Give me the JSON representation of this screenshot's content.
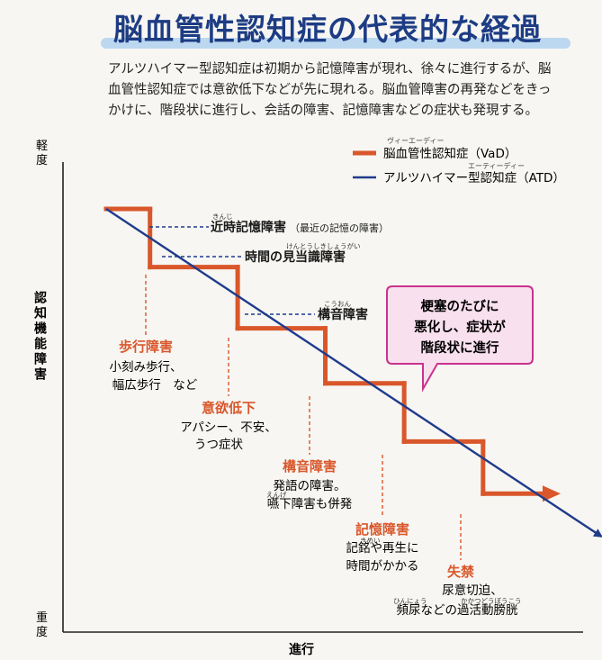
{
  "title": "脳血管性認知症の代表的な経過",
  "intro_lines": [
    "アルツハイマー型認知症は初期から記憶障害が現れ、徐々に進行するが、脳",
    "血管性認知症では意欲低下などが先に現れる。脳血管障害の再発などをきっ",
    "かけに、階段状に進行し、会話の障害、記憶障害などの症状も発現する。"
  ],
  "colors": {
    "vad": "#d9572b",
    "atd": "#1f3b8c",
    "title": "#1d3c84",
    "band": "#bcd8f0",
    "callout_border": "#c9338d",
    "callout_fill": "#f9e0ee"
  },
  "chart_data": {
    "type": "line",
    "ylabel": "認知機能障害",
    "y_top_label": "軽度",
    "y_bottom_label": "重度",
    "xlabel": "進行",
    "xlim": [
      0,
      100
    ],
    "ylim": [
      0,
      100
    ],
    "series": [
      {
        "name": "脳血管性認知症（VaD）",
        "ruby": "ヴィーエーディー",
        "points": [
          [
            0,
            100
          ],
          [
            10,
            100
          ],
          [
            10,
            81
          ],
          [
            30,
            81
          ],
          [
            30,
            61
          ],
          [
            50,
            61
          ],
          [
            50,
            43
          ],
          [
            68,
            43
          ],
          [
            68,
            24
          ],
          [
            86,
            24
          ],
          [
            86,
            7
          ],
          [
            100,
            7
          ]
        ]
      },
      {
        "name": "アルツハイマー型認知症（ATD）",
        "ruby": "エーティーディー",
        "points": [
          [
            0,
            100
          ],
          [
            113,
            -7
          ]
        ]
      }
    ],
    "atd_annotations": [
      {
        "text": "近時記憶障害",
        "ruby": "きんじ",
        "note": "（最近の記憶の障害）"
      },
      {
        "text": "時間の見当識障害",
        "ruby": "けんとうしきしょうがい"
      },
      {
        "text": "構音障害",
        "ruby": "こうおん"
      }
    ],
    "vad_annotations": [
      {
        "title": "歩行障害",
        "lines": [
          "小刻み歩行、",
          "幅広歩行　など"
        ]
      },
      {
        "title": "意欲低下",
        "lines": [
          "アパシー、不安、",
          "うつ症状"
        ]
      },
      {
        "title": "構音障害",
        "lines": [
          "発語の障害。",
          "嚥下障害も併発"
        ],
        "ruby": "えんげ"
      },
      {
        "title": "記憶障害",
        "lines": [
          "記銘や再生に",
          "時間がかかる"
        ],
        "ruby": "きめい"
      },
      {
        "title": "失禁",
        "lines": [
          "尿意切迫、",
          "頻尿などの過活動膀胱"
        ],
        "ruby": "ひんにょう",
        "ruby2": "かかつどうぼうこう"
      }
    ],
    "callout_lines": [
      "梗塞のたびに",
      "悪化し、症状が",
      "階段状に進行"
    ]
  }
}
